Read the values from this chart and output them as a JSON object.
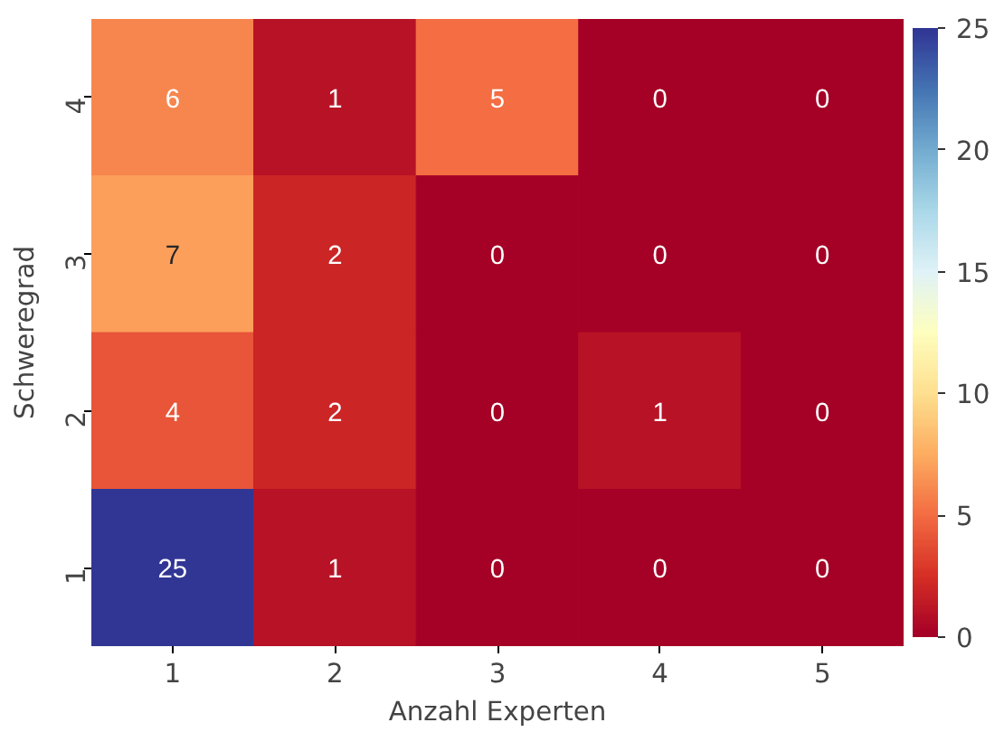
{
  "chart_data": {
    "type": "heatmap",
    "xlabel": "Anzahl Experten",
    "ylabel": "Schweregrad",
    "categories": [
      "1",
      "2",
      "3",
      "4",
      "5"
    ],
    "y_categories": [
      "4",
      "3",
      "2",
      "1"
    ],
    "cells": [
      [
        6,
        1,
        5,
        0,
        0
      ],
      [
        7,
        2,
        0,
        0,
        0
      ],
      [
        4,
        2,
        0,
        1,
        0
      ],
      [
        25,
        1,
        0,
        0,
        0
      ]
    ],
    "clim": [
      0,
      25
    ],
    "cticks": [
      0,
      5,
      10,
      15,
      20,
      25
    ],
    "data_labels": true
  }
}
